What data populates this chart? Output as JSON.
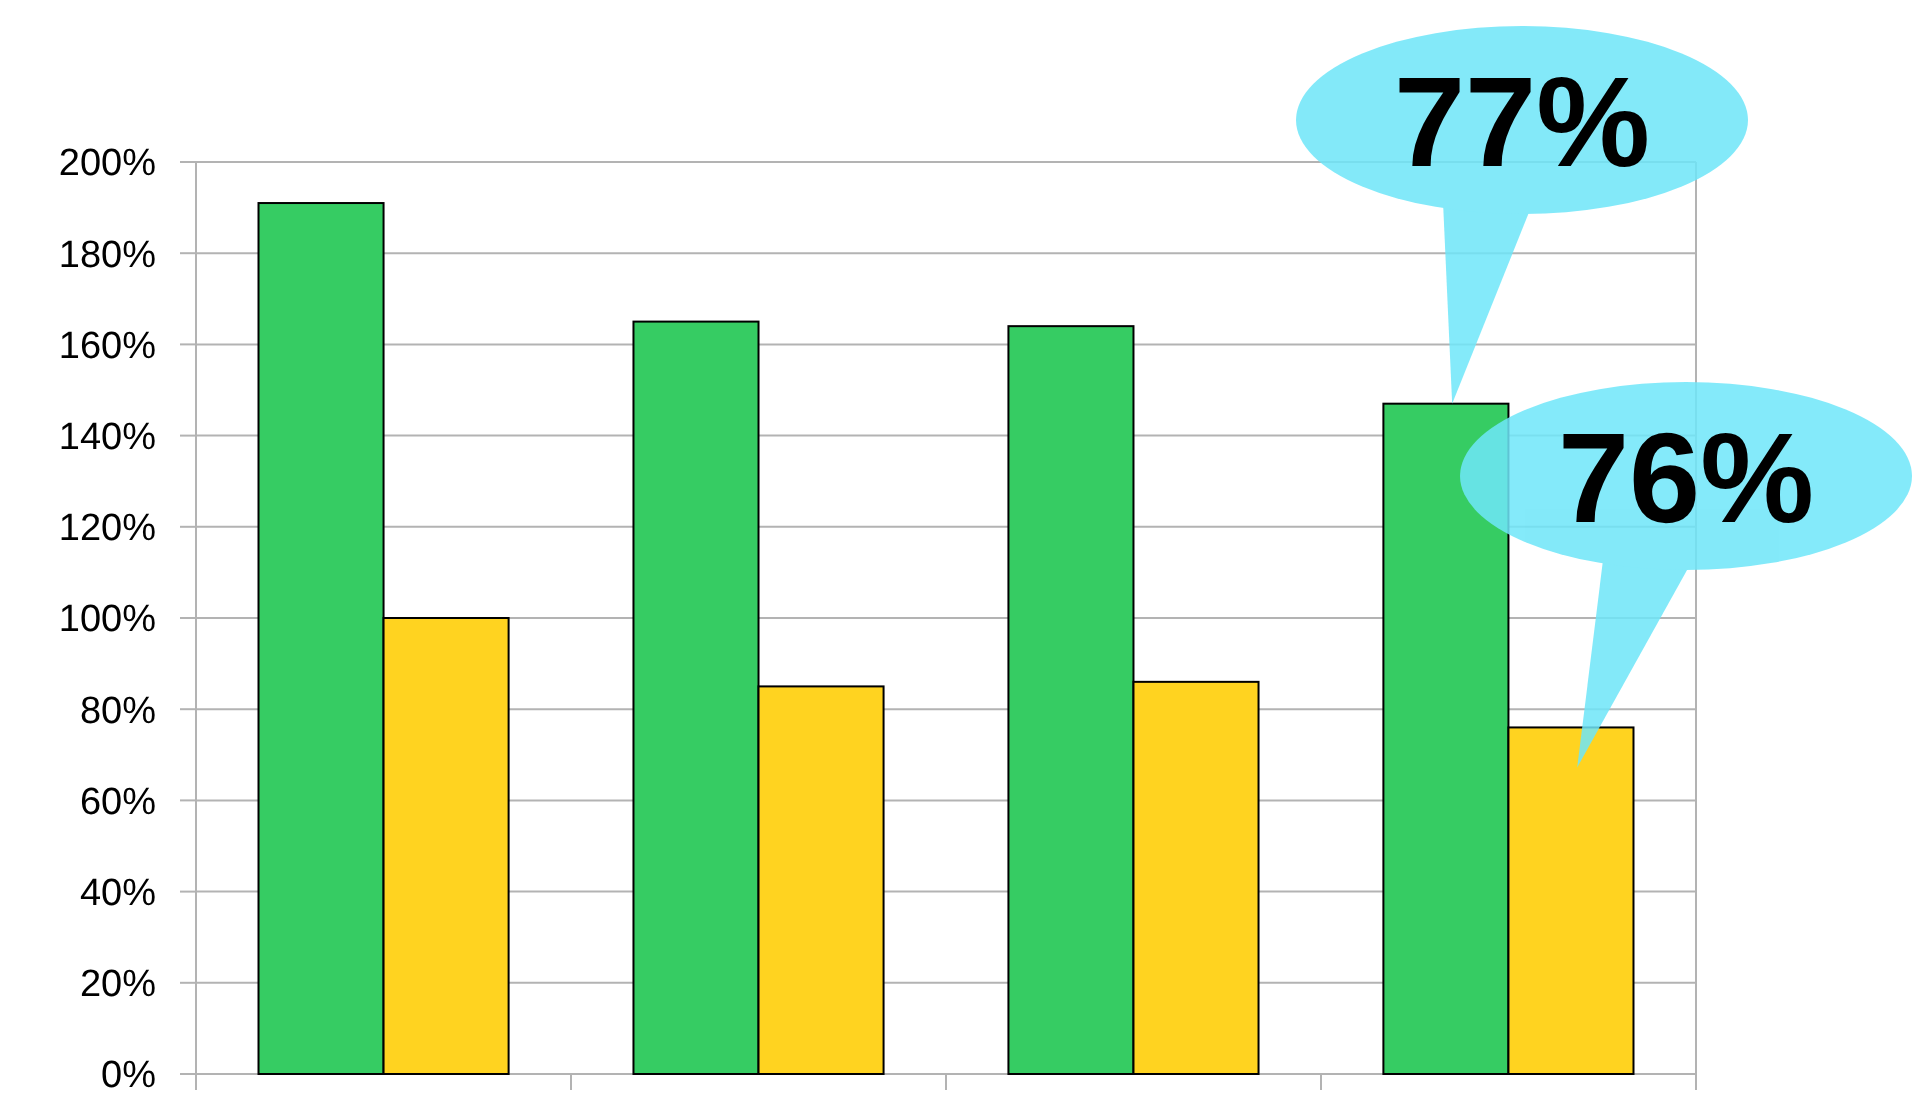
{
  "chart_data": {
    "type": "bar",
    "categories": [
      null,
      null,
      null,
      null
    ],
    "series": [
      {
        "color": "#36cc63",
        "values": [
          191,
          165,
          164,
          147
        ]
      },
      {
        "color": "#ffd320",
        "values": [
          100,
          85,
          86,
          76
        ]
      }
    ],
    "ylim": [
      0,
      200
    ],
    "yticks": [
      {
        "value": 0,
        "label": "0%"
      },
      {
        "value": 20,
        "label": "20%"
      },
      {
        "value": 40,
        "label": "40%"
      },
      {
        "value": 60,
        "label": "60%"
      },
      {
        "value": 80,
        "label": "80%"
      },
      {
        "value": 100,
        "label": "100%"
      },
      {
        "value": 120,
        "label": "120%"
      },
      {
        "value": 140,
        "label": "140%"
      },
      {
        "value": 160,
        "label": "160%"
      },
      {
        "value": 180,
        "label": "180%"
      },
      {
        "value": 200,
        "label": "200%"
      }
    ],
    "grid": "y",
    "annotations": [
      "77%",
      "76%"
    ]
  }
}
